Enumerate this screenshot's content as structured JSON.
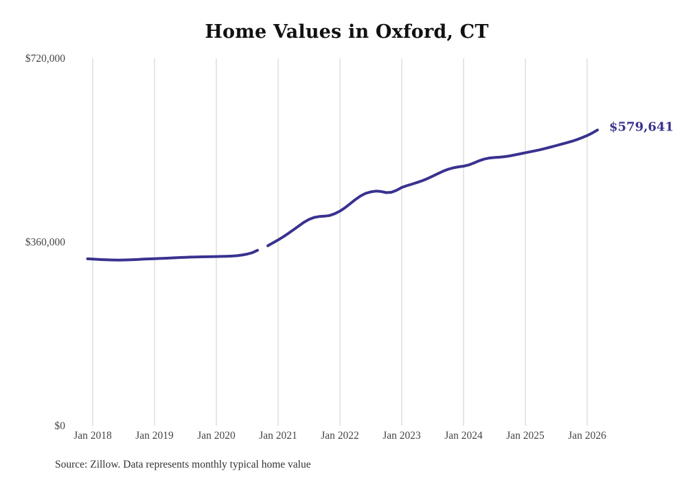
{
  "title": "Home Values in Oxford, CT",
  "source_note": "Source: Zillow. Data represents monthly typical home value",
  "colors": {
    "line": "#39328f",
    "annotation_text": "#39328f",
    "grid": "#cccccc",
    "axis_text": "#454545",
    "title_text": "#111111",
    "source_text": "#333333",
    "background": "#ffffff"
  },
  "chart_data": {
    "type": "line",
    "title": "Home Values in Oxford, CT",
    "xlabel": "",
    "ylabel": "",
    "ylim": [
      0,
      720000
    ],
    "grid": "vertical-only",
    "legend": "none",
    "end_label": "$579,641",
    "end_value": 579641,
    "gap_months": [
      "2020-10"
    ],
    "y_ticks": [
      {
        "label": "$0",
        "value": 0
      },
      {
        "label": "$360,000",
        "value": 360000
      },
      {
        "label": "$720,000",
        "value": 720000
      }
    ],
    "x_ticks": [
      {
        "label": "Jan 2018",
        "month": "2018-01"
      },
      {
        "label": "Jan 2019",
        "month": "2019-01"
      },
      {
        "label": "Jan 2020",
        "month": "2020-01"
      },
      {
        "label": "Jan 2021",
        "month": "2021-01"
      },
      {
        "label": "Jan 2022",
        "month": "2022-01"
      },
      {
        "label": "Jan 2023",
        "month": "2023-01"
      },
      {
        "label": "Jan 2024",
        "month": "2024-01"
      },
      {
        "label": "Jan 2025",
        "month": "2025-01"
      },
      {
        "label": "Jan 2026",
        "month": "2026-01"
      }
    ],
    "series": [
      {
        "name": "Monthly typical home value",
        "points": [
          [
            "2017-12",
            327200
          ],
          [
            "2018-01",
            326700
          ],
          [
            "2018-02",
            326100
          ],
          [
            "2018-03",
            325500
          ],
          [
            "2018-04",
            325100
          ],
          [
            "2018-05",
            324900
          ],
          [
            "2018-06",
            324800
          ],
          [
            "2018-07",
            324900
          ],
          [
            "2018-08",
            325200
          ],
          [
            "2018-09",
            325600
          ],
          [
            "2018-10",
            326100
          ],
          [
            "2018-11",
            326600
          ],
          [
            "2018-12",
            327000
          ],
          [
            "2019-01",
            327400
          ],
          [
            "2019-02",
            327800
          ],
          [
            "2019-03",
            328200
          ],
          [
            "2019-04",
            328700
          ],
          [
            "2019-05",
            329200
          ],
          [
            "2019-06",
            329700
          ],
          [
            "2019-07",
            330100
          ],
          [
            "2019-08",
            330500
          ],
          [
            "2019-09",
            330800
          ],
          [
            "2019-10",
            331000
          ],
          [
            "2019-11",
            331200
          ],
          [
            "2019-12",
            331400
          ],
          [
            "2020-01",
            331600
          ],
          [
            "2020-02",
            331900
          ],
          [
            "2020-03",
            332200
          ],
          [
            "2020-04",
            332600
          ],
          [
            "2020-05",
            333200
          ],
          [
            "2020-06",
            334500
          ],
          [
            "2020-07",
            336500
          ],
          [
            "2020-08",
            339300
          ],
          [
            "2020-09",
            343900
          ],
          [
            "2020-10",
            null
          ],
          [
            "2020-11",
            352700
          ],
          [
            "2020-12",
            358500
          ],
          [
            "2021-01",
            364200
          ],
          [
            "2021-02",
            370300
          ],
          [
            "2021-03",
            377100
          ],
          [
            "2021-04",
            384200
          ],
          [
            "2021-05",
            391500
          ],
          [
            "2021-06",
            398700
          ],
          [
            "2021-07",
            404400
          ],
          [
            "2021-08",
            408300
          ],
          [
            "2021-09",
            410100
          ],
          [
            "2021-10",
            410700
          ],
          [
            "2021-11",
            412100
          ],
          [
            "2021-12",
            415600
          ],
          [
            "2022-01",
            420700
          ],
          [
            "2022-02",
            427400
          ],
          [
            "2022-03",
            435200
          ],
          [
            "2022-04",
            443300
          ],
          [
            "2022-05",
            450300
          ],
          [
            "2022-06",
            455500
          ],
          [
            "2022-07",
            458400
          ],
          [
            "2022-08",
            459800
          ],
          [
            "2022-09",
            459100
          ],
          [
            "2022-10",
            456900
          ],
          [
            "2022-11",
            457600
          ],
          [
            "2022-12",
            461500
          ],
          [
            "2023-01",
            467000
          ],
          [
            "2023-02",
            470500
          ],
          [
            "2023-03",
            473600
          ],
          [
            "2023-04",
            476800
          ],
          [
            "2023-05",
            480300
          ],
          [
            "2023-06",
            484300
          ],
          [
            "2023-07",
            489000
          ],
          [
            "2023-08",
            494000
          ],
          [
            "2023-09",
            498800
          ],
          [
            "2023-10",
            502600
          ],
          [
            "2023-11",
            505500
          ],
          [
            "2023-12",
            507300
          ],
          [
            "2024-01",
            508700
          ],
          [
            "2024-02",
            511100
          ],
          [
            "2024-03",
            514900
          ],
          [
            "2024-04",
            519200
          ],
          [
            "2024-05",
            522600
          ],
          [
            "2024-06",
            524700
          ],
          [
            "2024-07",
            525600
          ],
          [
            "2024-08",
            526300
          ],
          [
            "2024-09",
            527400
          ],
          [
            "2024-10",
            528900
          ],
          [
            "2024-11",
            530900
          ],
          [
            "2024-12",
            533000
          ],
          [
            "2025-01",
            535100
          ],
          [
            "2025-02",
            537100
          ],
          [
            "2025-03",
            539100
          ],
          [
            "2025-04",
            541300
          ],
          [
            "2025-05",
            543800
          ],
          [
            "2025-06",
            546400
          ],
          [
            "2025-07",
            549100
          ],
          [
            "2025-08",
            551900
          ],
          [
            "2025-09",
            554600
          ],
          [
            "2025-10",
            557400
          ],
          [
            "2025-11",
            560600
          ],
          [
            "2025-12",
            564600
          ],
          [
            "2026-01",
            568800
          ],
          [
            "2026-02",
            573700
          ],
          [
            "2026-03",
            579641
          ]
        ]
      }
    ]
  }
}
